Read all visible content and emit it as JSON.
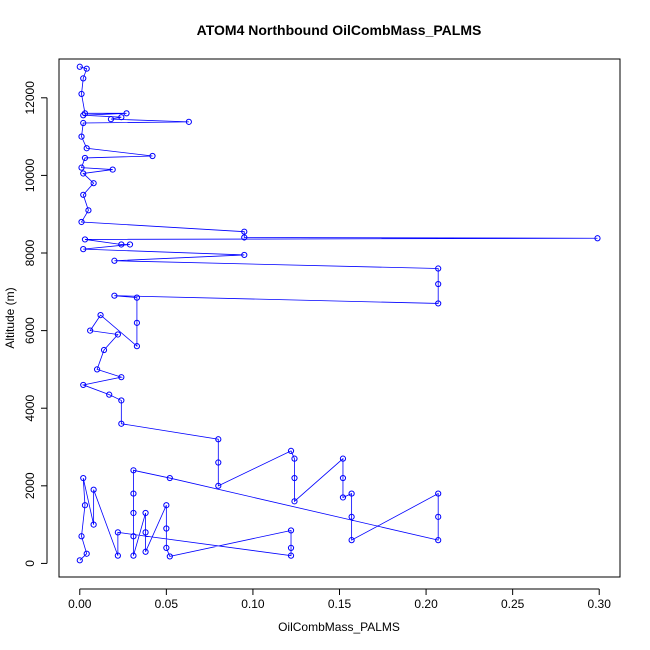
{
  "chart_data": {
    "type": "scatter",
    "title": "ATOM4 Northbound OilCombMass_PALMS",
    "xlabel": "OilCombMass_PALMS",
    "ylabel": "Altitude (m)",
    "xlim": [
      -0.012,
      0.312
    ],
    "ylim": [
      -350,
      13000
    ],
    "x_ticks": [
      0.0,
      0.05,
      0.1,
      0.15,
      0.2,
      0.25,
      0.3
    ],
    "x_tick_labels": [
      "0.00",
      "0.05",
      "0.10",
      "0.15",
      "0.20",
      "0.25",
      "0.30"
    ],
    "y_ticks": [
      0,
      2000,
      4000,
      6000,
      8000,
      10000,
      12000
    ],
    "y_tick_labels": [
      "0",
      "2000",
      "4000",
      "6000",
      "8000",
      "10000",
      "12000"
    ],
    "grid": false,
    "series": [
      {
        "color": "#0000ff",
        "style": "line-with-open-circles",
        "points": [
          {
            "x": 0.0,
            "y": 12800
          },
          {
            "x": 0.004,
            "y": 12750
          },
          {
            "x": 0.002,
            "y": 12500
          },
          {
            "x": 0.001,
            "y": 12100
          },
          {
            "x": 0.003,
            "y": 11600
          },
          {
            "x": 0.027,
            "y": 11600
          },
          {
            "x": 0.002,
            "y": 11550
          },
          {
            "x": 0.024,
            "y": 11500
          },
          {
            "x": 0.018,
            "y": 11450
          },
          {
            "x": 0.063,
            "y": 11380
          },
          {
            "x": 0.002,
            "y": 11350
          },
          {
            "x": 0.001,
            "y": 11000
          },
          {
            "x": 0.004,
            "y": 10700
          },
          {
            "x": 0.042,
            "y": 10500
          },
          {
            "x": 0.003,
            "y": 10450
          },
          {
            "x": 0.001,
            "y": 10200
          },
          {
            "x": 0.019,
            "y": 10150
          },
          {
            "x": 0.002,
            "y": 10050
          },
          {
            "x": 0.008,
            "y": 9800
          },
          {
            "x": 0.002,
            "y": 9500
          },
          {
            "x": 0.005,
            "y": 9100
          },
          {
            "x": 0.001,
            "y": 8800
          },
          {
            "x": 0.095,
            "y": 8550
          },
          {
            "x": 0.095,
            "y": 8400
          },
          {
            "x": 0.299,
            "y": 8380
          },
          {
            "x": 0.003,
            "y": 8350
          },
          {
            "x": 0.024,
            "y": 8220
          },
          {
            "x": 0.029,
            "y": 8220
          },
          {
            "x": 0.002,
            "y": 8100
          },
          {
            "x": 0.095,
            "y": 7950
          },
          {
            "x": 0.02,
            "y": 7800
          },
          {
            "x": 0.207,
            "y": 7600
          },
          {
            "x": 0.207,
            "y": 7200
          },
          {
            "x": 0.207,
            "y": 6700
          },
          {
            "x": 0.02,
            "y": 6900
          },
          {
            "x": 0.033,
            "y": 6850
          },
          {
            "x": 0.033,
            "y": 6200
          },
          {
            "x": 0.033,
            "y": 5600
          },
          {
            "x": 0.012,
            "y": 6400
          },
          {
            "x": 0.006,
            "y": 6000
          },
          {
            "x": 0.022,
            "y": 5900
          },
          {
            "x": 0.014,
            "y": 5500
          },
          {
            "x": 0.01,
            "y": 5000
          },
          {
            "x": 0.024,
            "y": 4800
          },
          {
            "x": 0.002,
            "y": 4600
          },
          {
            "x": 0.017,
            "y": 4350
          },
          {
            "x": 0.024,
            "y": 4200
          },
          {
            "x": 0.024,
            "y": 3600
          },
          {
            "x": 0.08,
            "y": 3200
          },
          {
            "x": 0.08,
            "y": 2600
          },
          {
            "x": 0.08,
            "y": 2000
          },
          {
            "x": 0.122,
            "y": 2900
          },
          {
            "x": 0.124,
            "y": 2700
          },
          {
            "x": 0.124,
            "y": 2200
          },
          {
            "x": 0.124,
            "y": 1600
          },
          {
            "x": 0.152,
            "y": 2700
          },
          {
            "x": 0.152,
            "y": 2200
          },
          {
            "x": 0.152,
            "y": 1700
          },
          {
            "x": 0.157,
            "y": 1800
          },
          {
            "x": 0.157,
            "y": 1200
          },
          {
            "x": 0.157,
            "y": 600
          },
          {
            "x": 0.207,
            "y": 1800
          },
          {
            "x": 0.207,
            "y": 1200
          },
          {
            "x": 0.207,
            "y": 600
          },
          {
            "x": 0.052,
            "y": 2200
          },
          {
            "x": 0.031,
            "y": 2400
          },
          {
            "x": 0.031,
            "y": 1800
          },
          {
            "x": 0.031,
            "y": 1300
          },
          {
            "x": 0.031,
            "y": 700
          },
          {
            "x": 0.031,
            "y": 200
          },
          {
            "x": 0.038,
            "y": 1300
          },
          {
            "x": 0.038,
            "y": 800
          },
          {
            "x": 0.038,
            "y": 300
          },
          {
            "x": 0.05,
            "y": 1500
          },
          {
            "x": 0.05,
            "y": 900
          },
          {
            "x": 0.05,
            "y": 400
          },
          {
            "x": 0.052,
            "y": 180
          },
          {
            "x": 0.122,
            "y": 850
          },
          {
            "x": 0.122,
            "y": 400
          },
          {
            "x": 0.122,
            "y": 200
          },
          {
            "x": 0.022,
            "y": 800
          },
          {
            "x": 0.022,
            "y": 200
          },
          {
            "x": 0.008,
            "y": 1900
          },
          {
            "x": 0.008,
            "y": 1000
          },
          {
            "x": 0.002,
            "y": 2200
          },
          {
            "x": 0.003,
            "y": 1500
          },
          {
            "x": 0.001,
            "y": 700
          },
          {
            "x": 0.004,
            "y": 250
          },
          {
            "x": 0.0,
            "y": 80
          }
        ]
      }
    ]
  }
}
